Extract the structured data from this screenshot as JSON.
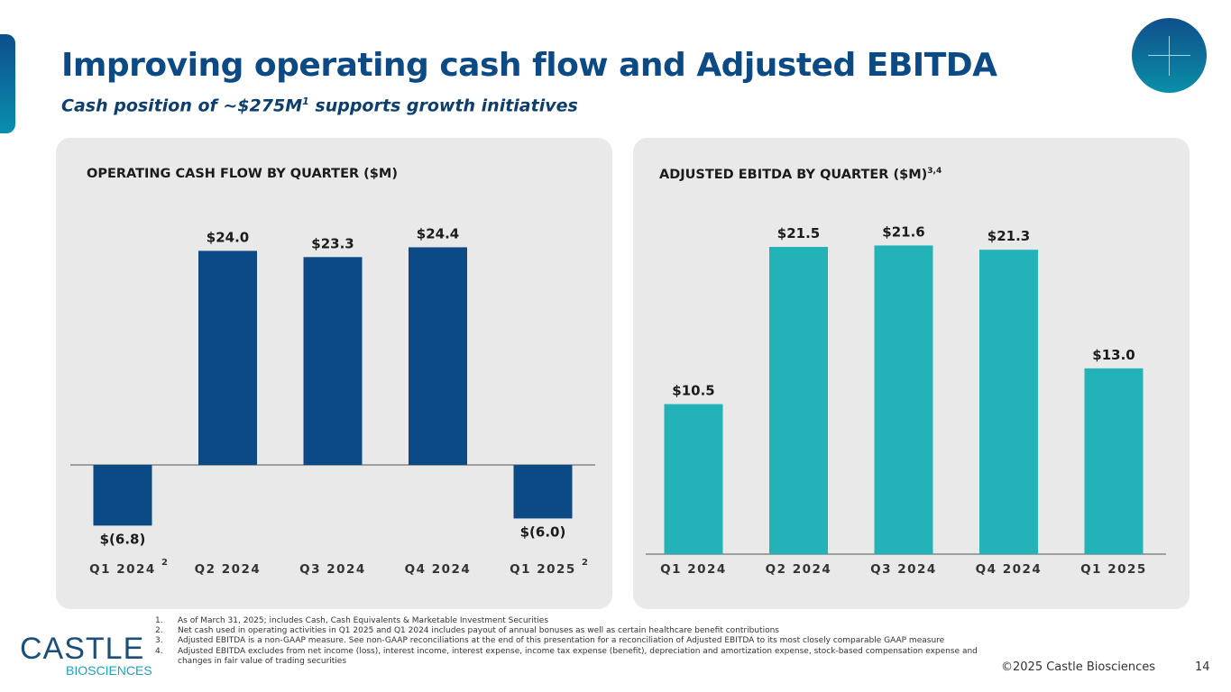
{
  "header": {
    "title": "Improving operating cash flow and Adjusted EBITDA",
    "subtitle": "Cash position of ~$275M",
    "subtitle_sup": "1",
    "subtitle_rest": " supports growth initiatives"
  },
  "chart_data": [
    {
      "type": "bar",
      "title": "OPERATING CASH FLOW BY QUARTER ($M)",
      "categories": [
        "Q1 2024",
        "Q2 2024",
        "Q3 2024",
        "Q4 2024",
        "Q1 2025"
      ],
      "category_footnotes": [
        "2",
        "",
        "",
        "",
        "2"
      ],
      "values": [
        -6.8,
        24.0,
        23.3,
        24.4,
        -6.0
      ],
      "labels": [
        "$(6.8)",
        "$24.0",
        "$23.3",
        "$24.4",
        "$(6.0)"
      ],
      "color": "#0c4a85",
      "grid": false
    },
    {
      "type": "bar",
      "title": "ADJUSTED EBITDA BY QUARTER ($M)",
      "title_sup": "3,4",
      "categories": [
        "Q1 2024",
        "Q2 2024",
        "Q3 2024",
        "Q4 2024",
        "Q1 2025"
      ],
      "values": [
        10.5,
        21.5,
        21.6,
        21.3,
        13.0
      ],
      "labels": [
        "$10.5",
        "$21.5",
        "$21.6",
        "$21.3",
        "$13.0"
      ],
      "color": "#22b2b8",
      "grid": false
    }
  ],
  "footnotes": [
    {
      "n": "1.",
      "text": "As of March 31, 2025; includes Cash, Cash Equivalents & Marketable Investment Securities"
    },
    {
      "n": "2.",
      "text": "Net cash used in operating activities in Q1 2025 and Q1 2024 includes payout of annual bonuses as well as certain healthcare benefit contributions"
    },
    {
      "n": "3.",
      "text": "Adjusted EBITDA is a non-GAAP measure. See non-GAAP reconciliations at the end of this presentation for a reconciliation of Adjusted EBITDA to its most closely comparable GAAP measure"
    },
    {
      "n": "4.",
      "text": "Adjusted EBITDA excludes from net income (loss), interest income, interest expense, income tax expense (benefit), depreciation and amortization expense, stock-based compensation expense and changes in fair value of trading securities"
    }
  ],
  "logo": {
    "name": "CASTLE",
    "sub": "BIOSCIENCES"
  },
  "footer": {
    "copyright": "©2025 Castle Biosciences",
    "page": "14"
  }
}
